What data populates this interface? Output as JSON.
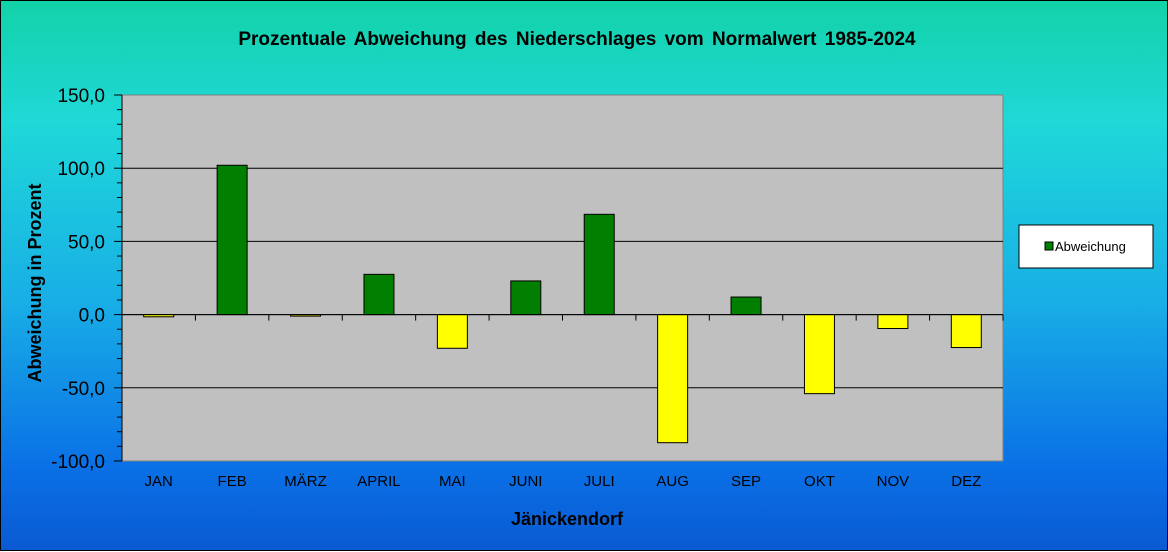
{
  "chart_data": {
    "type": "bar",
    "title": "Prozentuale  Abweichung  des  Niederschlages  vom  Normalwert  1985-2024",
    "xlabel": "Jänickendorf",
    "ylabel": "Abweichung in Prozent",
    "categories": [
      "JAN",
      "FEB",
      "MÄRZ",
      "APRIL",
      "MAI",
      "JUNI",
      "JULI",
      "AUG",
      "SEP",
      "OKT",
      "NOV",
      "DEZ"
    ],
    "series": [
      {
        "name": "Abweichung",
        "values": [
          -1.5,
          102.0,
          -1.0,
          27.5,
          -23.0,
          23.0,
          68.5,
          -87.5,
          12.0,
          -54.0,
          -9.5,
          -22.5
        ]
      }
    ],
    "ylim": [
      -100,
      150
    ],
    "yticks": [
      "-100,0",
      "-50,0",
      "0,0",
      "50,0",
      "100,0",
      "150,0"
    ],
    "grid": true,
    "legend_position": "right",
    "colors": {
      "positive": "#007f00",
      "negative": "#ffff00",
      "plot_background": "#c0c0c0",
      "outline": "#000000"
    }
  }
}
